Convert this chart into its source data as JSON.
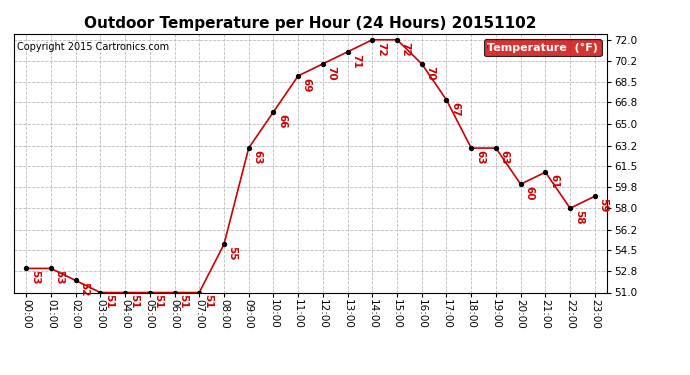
{
  "title": "Outdoor Temperature per Hour (24 Hours) 20151102",
  "copyright": "Copyright 2015 Cartronics.com",
  "legend_label": "Temperature  (°F)",
  "hours": [
    "00:00",
    "01:00",
    "02:00",
    "03:00",
    "04:00",
    "05:00",
    "06:00",
    "07:00",
    "08:00",
    "09:00",
    "10:00",
    "11:00",
    "12:00",
    "13:00",
    "14:00",
    "15:00",
    "16:00",
    "17:00",
    "18:00",
    "19:00",
    "20:00",
    "21:00",
    "22:00",
    "23:00"
  ],
  "temps": [
    53,
    53,
    52,
    51,
    51,
    51,
    51,
    51,
    55,
    63,
    66,
    69,
    70,
    71,
    72,
    72,
    70,
    67,
    63,
    63,
    60,
    61,
    58,
    59
  ],
  "ylim_min": 51.0,
  "ylim_max": 72.5,
  "yticks": [
    51.0,
    52.8,
    54.5,
    56.2,
    58.0,
    59.8,
    61.5,
    63.2,
    65.0,
    66.8,
    68.5,
    70.2,
    72.0
  ],
  "line_color": "#cc0000",
  "marker_color": "black",
  "label_color": "#cc0000",
  "bg_color": "#ffffff",
  "grid_color": "#bbbbbb",
  "legend_bg": "#cc0000",
  "legend_text_color": "#ffffff",
  "title_fontsize": 11,
  "copyright_fontsize": 7,
  "label_fontsize": 7.5,
  "tick_fontsize": 7.5,
  "linewidth": 1.2,
  "marker_size": 8
}
